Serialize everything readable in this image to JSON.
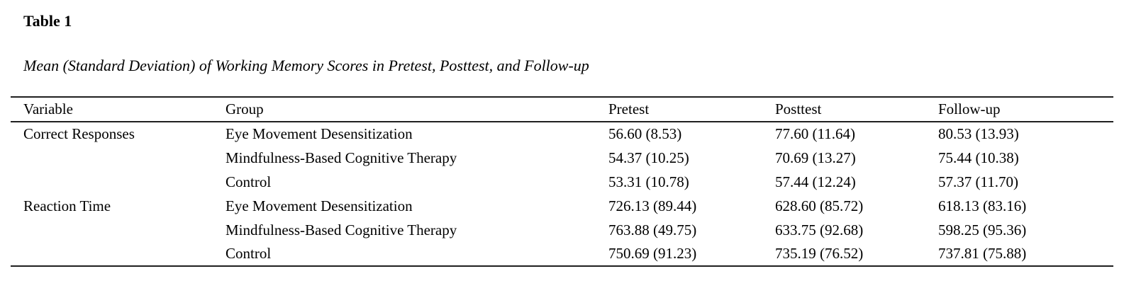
{
  "theme": {
    "background": "#ffffff",
    "text_color": "#000000",
    "border_color": "#1f1f1f"
  },
  "document": {
    "table_label": "Table 1",
    "caption": "Mean (Standard Deviation) of Working Memory Scores in Pretest, Posttest, and Follow-up"
  },
  "table": {
    "headers": [
      "Variable",
      "Group",
      "Pretest",
      "Posttest",
      "Follow-up"
    ],
    "rows": [
      [
        "Correct Responses",
        "Eye Movement Desensitization",
        "56.60 (8.53)",
        "77.60 (11.64)",
        "80.53 (13.93)"
      ],
      [
        "",
        "Mindfulness-Based Cognitive Therapy",
        "54.37 (10.25)",
        "70.69 (13.27)",
        "75.44 (10.38)"
      ],
      [
        "",
        "Control",
        "53.31 (10.78)",
        "57.44 (12.24)",
        "57.37 (11.70)"
      ],
      [
        "Reaction Time",
        "Eye Movement Desensitization",
        "726.13 (89.44)",
        "628.60 (85.72)",
        "618.13 (83.16)"
      ],
      [
        "",
        "Mindfulness-Based Cognitive Therapy",
        "763.88 (49.75)",
        "633.75 (92.68)",
        "598.25 (95.36)"
      ],
      [
        "",
        "Control",
        "750.69 (91.23)",
        "735.19 (76.52)",
        "737.81 (75.88)"
      ]
    ]
  }
}
